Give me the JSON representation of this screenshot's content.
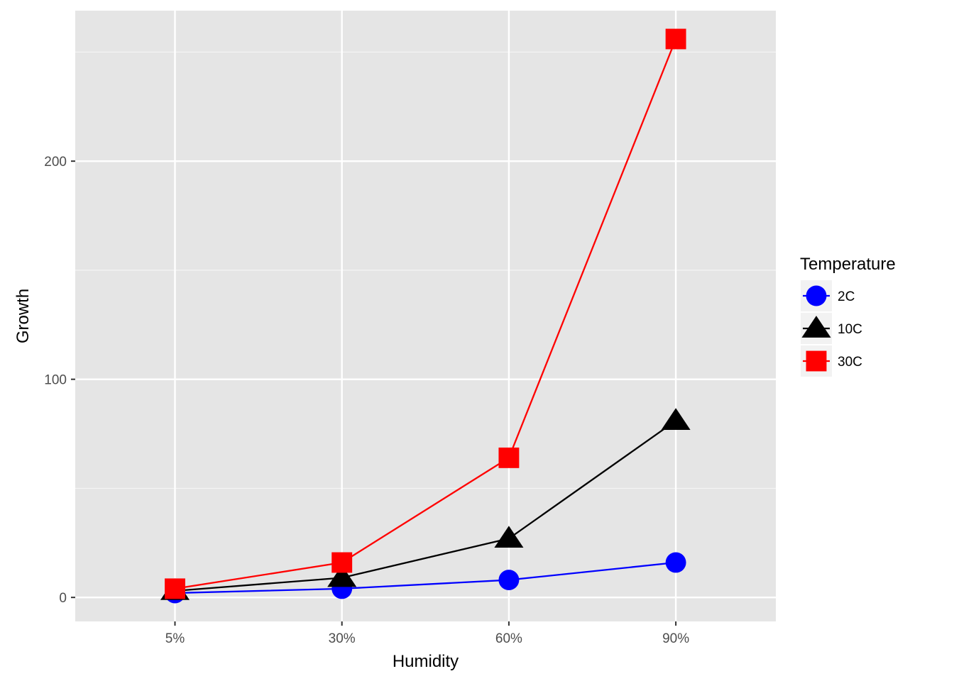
{
  "chart_data": {
    "type": "line",
    "x_categories": [
      "5%",
      "30%",
      "60%",
      "90%"
    ],
    "xlabel": "Humidity",
    "ylabel": "Growth",
    "ylim": [
      -11,
      269
    ],
    "yticks": [
      0,
      100,
      200
    ],
    "y_minor_gridlines": [
      50,
      150,
      250
    ],
    "grid": true,
    "panel_background": "#e5e5e5",
    "legend": {
      "title": "Temperature",
      "position": "right"
    },
    "series": [
      {
        "name": "2C",
        "color": "#0000ff",
        "marker": "circle",
        "values": [
          2,
          4,
          8,
          16
        ]
      },
      {
        "name": "10C",
        "color": "#000000",
        "marker": "triangle",
        "values": [
          3,
          9,
          27,
          81
        ]
      },
      {
        "name": "30C",
        "color": "#ff0000",
        "marker": "square",
        "values": [
          4,
          16,
          64,
          256
        ]
      }
    ]
  }
}
